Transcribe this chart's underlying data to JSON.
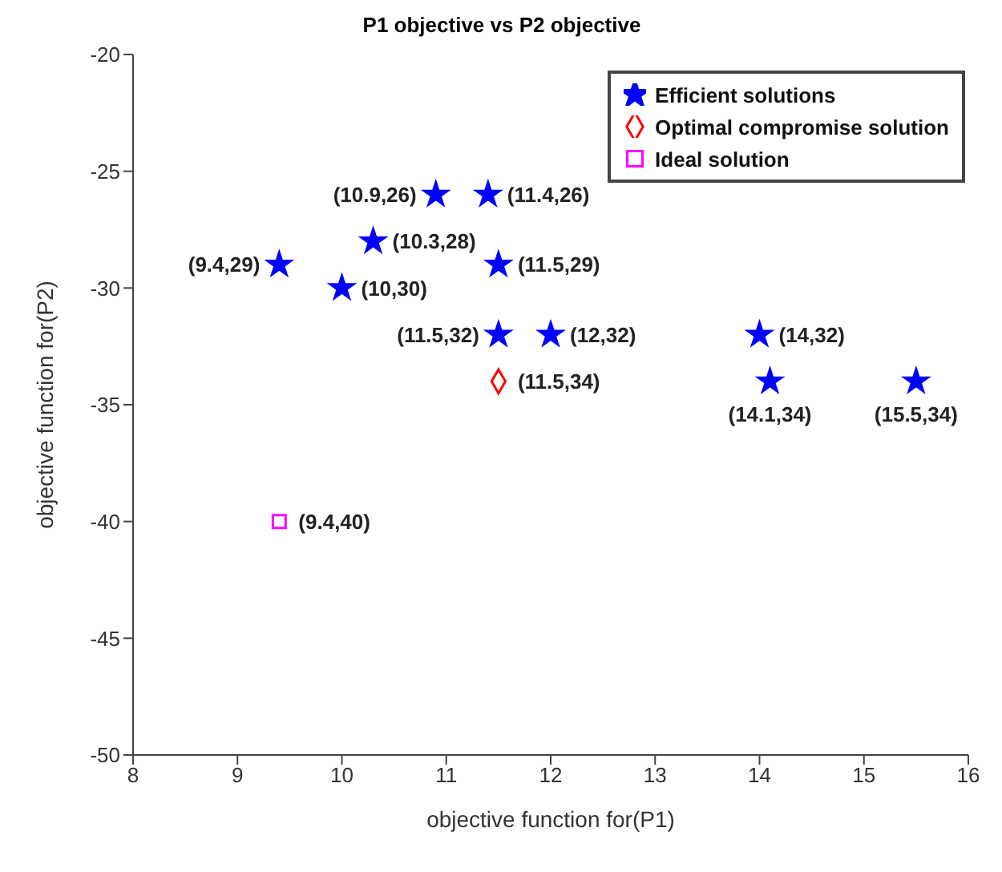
{
  "chart_data": {
    "type": "scatter",
    "title": "P1 objective vs P2 objective",
    "xlabel": "objective function for(P1)",
    "ylabel": "objective function for(P2)",
    "xlim": [
      8,
      16
    ],
    "xticks": [
      8,
      9,
      10,
      11,
      12,
      13,
      14,
      15,
      16
    ],
    "ylim": [
      -50,
      -20
    ],
    "yticks": [
      -50,
      -45,
      -40,
      -35,
      -30,
      -25,
      -20
    ],
    "grid": false,
    "legend": "top right",
    "series": [
      {
        "name": "Efficient solutions",
        "color": "#0000ff",
        "marker": "star",
        "x": [
          10.9,
          11.4,
          10.3,
          9.4,
          10,
          11.5,
          11.5,
          12,
          14,
          14.1,
          15.5
        ],
        "values": [
          -26,
          -26,
          -28,
          -29,
          -30,
          -29,
          -32,
          -32,
          -32,
          -34,
          -34
        ]
      },
      {
        "name": "Optimal compromise solution",
        "color": "#ff0000",
        "marker": "diamond",
        "x": [
          11.5
        ],
        "values": [
          -34
        ]
      },
      {
        "name": "Ideal solution",
        "color": "#ff00ff",
        "marker": "square",
        "x": [
          9.4
        ],
        "values": [
          -40
        ]
      }
    ],
    "annotations": [
      {
        "text": "(10.9,26)",
        "x": 10.9,
        "y": -26
      },
      {
        "text": "(11.4,26)",
        "x": 11.4,
        "y": -26
      },
      {
        "text": "(10.3,28)",
        "x": 10.3,
        "y": -28
      },
      {
        "text": "(9.4,29)",
        "x": 9.4,
        "y": -29
      },
      {
        "text": "(10,30)",
        "x": 10,
        "y": -30
      },
      {
        "text": "(11.5,29)",
        "x": 11.5,
        "y": -29
      },
      {
        "text": "(11.5,32)",
        "x": 11.5,
        "y": -32
      },
      {
        "text": "(12,32)",
        "x": 12,
        "y": -32
      },
      {
        "text": "(14,32)",
        "x": 14,
        "y": -32
      },
      {
        "text": "(14.1,34)",
        "x": 14.1,
        "y": -34
      },
      {
        "text": "(15.5,34)",
        "x": 15.5,
        "y": -34
      },
      {
        "text": "(11.5,34)",
        "x": 11.5,
        "y": -34
      },
      {
        "text": "(9.4,40)",
        "x": 9.4,
        "y": -40
      }
    ]
  }
}
